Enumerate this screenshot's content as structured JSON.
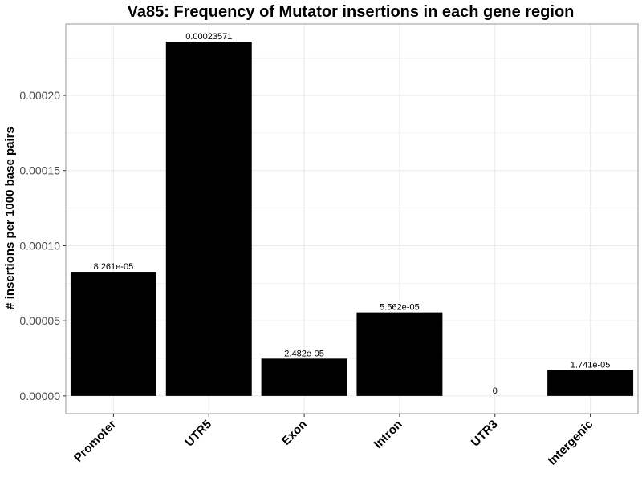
{
  "chart_data": {
    "type": "bar",
    "title": "Va85: Frequency of Mutator insertions in each gene region",
    "xlabel": "",
    "ylabel": "# insertions per 1000 base pairs",
    "categories": [
      "Promoter",
      "UTR5",
      "Exon",
      "Intron",
      "UTR3",
      "Intergenic"
    ],
    "values": [
      8.261e-05,
      0.00023571,
      2.482e-05,
      5.562e-05,
      0,
      1.741e-05
    ],
    "value_labels": [
      "8.261e-05",
      "0.00023571",
      "2.482e-05",
      "5.562e-05",
      "0",
      "1.741e-05"
    ],
    "yticks": [
      0,
      5e-05,
      0.0001,
      0.00015,
      0.0002
    ],
    "ytick_labels": [
      "0.00000",
      "0.00005",
      "0.00010",
      "0.00015",
      "0.00020"
    ],
    "ylim": [
      -1.18e-05,
      0.0002475
    ],
    "grid": true,
    "legend": "none",
    "bar_color": "#000000",
    "grid_color": "#ebebeb",
    "panel_border_color": "#a0a0a0"
  }
}
